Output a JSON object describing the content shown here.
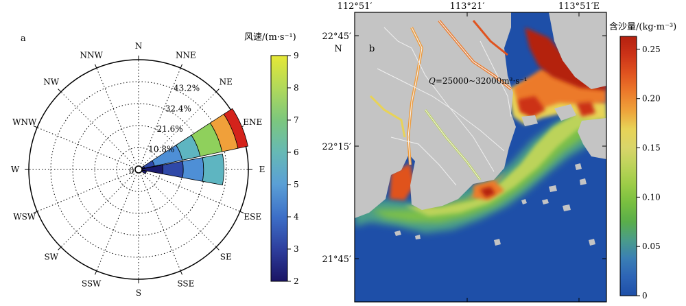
{
  "panel_a": {
    "label": "a",
    "directions": [
      "N",
      "NNE",
      "NE",
      "ENE",
      "E",
      "ESE",
      "SE",
      "SSE",
      "S",
      "SSW",
      "SW",
      "WSW",
      "W",
      "WNW",
      "NW",
      "NNW"
    ],
    "ring_labels": [
      "10.8%",
      "21.6%",
      "32.4%",
      "43.2%"
    ],
    "center_label": "0",
    "colorbar": {
      "title": "风速/(m·s⁻¹)",
      "ticks": [
        "2",
        "3",
        "4",
        "5",
        "6",
        "7",
        "8",
        "9"
      ],
      "min": 2,
      "max": 9,
      "colors": [
        "#1a1464",
        "#2e3f9e",
        "#3d6fc7",
        "#5a9fd6",
        "#66b9b5",
        "#7cc77d",
        "#b1d95a",
        "#e6e836"
      ]
    }
  },
  "chart_data": {
    "type": "wind-rose",
    "radial_unit": "%",
    "radial_ticks": [
      10.8,
      21.6,
      32.4,
      43.2
    ],
    "radial_max": 54,
    "speed_bins": [
      {
        "range": [
          2,
          3
        ],
        "color": "#1a1a6e"
      },
      {
        "range": [
          3,
          4
        ],
        "color": "#2f49a8"
      },
      {
        "range": [
          4,
          5
        ],
        "color": "#4e8fd6"
      },
      {
        "range": [
          5,
          6
        ],
        "color": "#5eb5c1"
      },
      {
        "range": [
          6,
          7
        ],
        "color": "#8fd05c"
      },
      {
        "range": [
          7,
          8
        ],
        "color": "#f0a03a"
      },
      {
        "range": [
          8,
          9
        ],
        "color": "#d4231b"
      }
    ],
    "petals": [
      {
        "direction": "E",
        "cumulative": [
          12,
          22,
          32,
          42
        ]
      },
      {
        "direction": "ENE",
        "cumulative": [
          3,
          8,
          22,
          31,
          42,
          50,
          55
        ]
      },
      {
        "direction": "ESE",
        "cumulative": [
          4
        ]
      }
    ]
  },
  "panel_b": {
    "label": "b",
    "top_lon_labels": [
      "112°51′",
      "113°21′",
      "113°51′E"
    ],
    "left_lat_labels": [
      "22°45′",
      "22°15′",
      "21°45′"
    ],
    "north_label": "N",
    "annotation": {
      "italic": "Q",
      "text": "=25000~32000m³·s⁻¹"
    },
    "colorbar": {
      "title": "含沙量/(kg·m⁻³)",
      "ticks": [
        "0",
        "0.05",
        "0.10",
        "0.15",
        "0.20",
        "0.25"
      ],
      "colors": [
        "#1e4fa8",
        "#2d64b6",
        "#3a7fb5",
        "#4a9c8a",
        "#5aae4a",
        "#78bf40",
        "#9ccc47",
        "#bcd35a",
        "#d9d56a",
        "#e8d357",
        "#eea23a",
        "#ec7a2b",
        "#e0531f",
        "#cc3318",
        "#b4200f"
      ]
    },
    "colors": {
      "land": "#c4c4c4",
      "sea": "#1e4fa8",
      "river_line": "#f0f0f0"
    }
  }
}
